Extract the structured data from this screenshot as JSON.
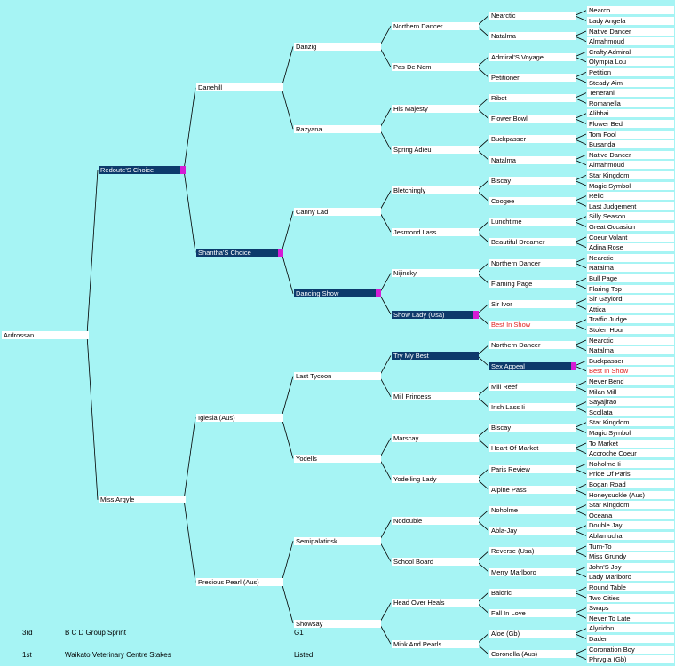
{
  "horse": "Ardrossan",
  "sire": {
    "name": "Redoute'S Choice",
    "sire": {
      "name": "Danehill",
      "sire": {
        "name": "Danzig",
        "sire": {
          "name": "Northern Dancer",
          "sire": {
            "name": "Nearctic",
            "sire": "Nearco",
            "dam": "Lady Angela"
          },
          "dam": {
            "name": "Natalma",
            "sire": "Native Dancer",
            "dam": "Almahmoud"
          }
        },
        "dam": {
          "name": "Pas De Nom",
          "sire": {
            "name": "Admiral'S Voyage",
            "sire": "Crafty Admiral",
            "dam": "Olympia Lou"
          },
          "dam": {
            "name": "Petitioner",
            "sire": "Petition",
            "dam": "Steady Aim"
          }
        }
      },
      "dam": {
        "name": "Razyana",
        "sire": {
          "name": "His Majesty",
          "sire": {
            "name": "Ribot",
            "sire": "Tenerani",
            "dam": "Romanella"
          },
          "dam": {
            "name": "Flower Bowl",
            "sire": "Alibhai",
            "dam": "Flower Bed"
          }
        },
        "dam": {
          "name": "Spring Adieu",
          "sire": {
            "name": "Buckpasser",
            "sire": "Tom Fool",
            "dam": "Busanda"
          },
          "dam": {
            "name": "Natalma",
            "sire": "Native Dancer",
            "dam": "Almahmoud"
          }
        }
      }
    },
    "dam": {
      "name": "Shantha'S Choice",
      "sire": {
        "name": "Canny Lad",
        "sire": {
          "name": "Bletchingly",
          "sire": {
            "name": "Biscay",
            "sire": "Star Kingdom",
            "dam": "Magic Symbol"
          },
          "dam": {
            "name": "Coogee",
            "sire": "Relic",
            "dam": "Last Judgement"
          }
        },
        "dam": {
          "name": "Jesmond Lass",
          "sire": {
            "name": "Lunchtime",
            "sire": "Silly Season",
            "dam": "Great Occasion"
          },
          "dam": {
            "name": "Beautiful Dreamer",
            "sire": "Coeur Volant",
            "dam": "Adina Rose"
          }
        }
      },
      "dam": {
        "name": "Dancing Show",
        "sire": {
          "name": "Nijinsky",
          "sire": {
            "name": "Northern Dancer",
            "sire": "Nearctic",
            "dam": "Natalma"
          },
          "dam": {
            "name": "Flaming Page",
            "sire": "Bull Page",
            "dam": "Flaring Top"
          }
        },
        "dam": {
          "name": "Show Lady (Usa)",
          "sire": {
            "name": "Sir Ivor",
            "sire": "Sir Gaylord",
            "dam": "Attica"
          },
          "dam": {
            "name": "Best In Show",
            "sire": "Traffic Judge",
            "dam": "Stolen Hour"
          }
        }
      }
    }
  },
  "dam": {
    "name": "Miss Argyle",
    "sire": {
      "name": "Iglesia (Aus)",
      "sire": {
        "name": "Last Tycoon",
        "sire": {
          "name": "Try My Best",
          "sire": {
            "name": "Northern Dancer",
            "sire": "Nearctic",
            "dam": "Natalma"
          },
          "dam": {
            "name": "Sex Appeal",
            "sire": "Buckpasser",
            "dam": "Best In Show"
          }
        },
        "dam": {
          "name": "Mill Princess",
          "sire": {
            "name": "Mill Reef",
            "sire": "Never Bend",
            "dam": "Milan Mill"
          },
          "dam": {
            "name": "Irish Lass Ii",
            "sire": "Sayajirao",
            "dam": "Scollata"
          }
        }
      },
      "dam": {
        "name": "Yodells",
        "sire": {
          "name": "Marscay",
          "sire": {
            "name": "Biscay",
            "sire": "Star Kingdom",
            "dam": "Magic Symbol"
          },
          "dam": {
            "name": "Heart Of Market",
            "sire": "To Market",
            "dam": "Accroche Coeur"
          }
        },
        "dam": {
          "name": "Yodelling Lady",
          "sire": {
            "name": "Paris Review",
            "sire": "Noholme Ii",
            "dam": "Pride Of Paris"
          },
          "dam": {
            "name": "Alpine Pass",
            "sire": "Bogan Road",
            "dam": "Honeysuckle (Aus)"
          }
        }
      }
    },
    "dam": {
      "name": "Precious Pearl (Aus)",
      "sire": {
        "name": "Semipalatinsk",
        "sire": {
          "name": "Nodouble",
          "sire": {
            "name": "Noholme",
            "sire": "Star Kingdom",
            "dam": "Oceana"
          },
          "dam": {
            "name": "Abla-Jay",
            "sire": "Double Jay",
            "dam": "Ablamucha"
          }
        },
        "dam": {
          "name": "School Board",
          "sire": {
            "name": "Reverse (Usa)",
            "sire": "Turn-To",
            "dam": "Miss Grundy"
          },
          "dam": {
            "name": "Merry Marlboro",
            "sire": "John'S Joy",
            "dam": "Lady Marlboro"
          }
        }
      },
      "dam": {
        "name": "Showsay",
        "sire": {
          "name": "Head Over Heals",
          "sire": {
            "name": "Baldric",
            "sire": "Round Table",
            "dam": "Two Cities"
          },
          "dam": {
            "name": "Fall In Love",
            "sire": "Swaps",
            "dam": "Never To Late"
          }
        },
        "dam": {
          "name": "Mink And Pearls",
          "sire": {
            "name": "Aloe (Gb)",
            "sire": "Alycidon",
            "dam": "Dader"
          },
          "dam": {
            "name": "Coronella (Aus)",
            "sire": "Coronation Boy",
            "dam": "Phrygia (Gb)"
          }
        }
      }
    }
  },
  "highlighted": [
    "Redoute'S Choice",
    "Shantha'S Choice",
    "Dancing Show",
    "Show Lady (Usa)",
    "Try My Best",
    "Sex Appeal"
  ],
  "flagged": [
    "Redoute'S Choice",
    "Shantha'S Choice",
    "Dancing Show",
    "Show Lady (Usa)",
    "Sex Appeal"
  ],
  "red_names": [
    "Best In Show"
  ],
  "races": [
    {
      "place": "3rd",
      "name": "B C D Group Sprint",
      "grade": "G1"
    },
    {
      "place": "1st",
      "name": "Waikato Veterinary Centre Stakes",
      "grade": "Listed"
    }
  ],
  "colors": {
    "background": "#a6f4f4",
    "highlight": "#0d3a6b",
    "flag": "#d51cd5",
    "red_text": "#e0201e"
  }
}
